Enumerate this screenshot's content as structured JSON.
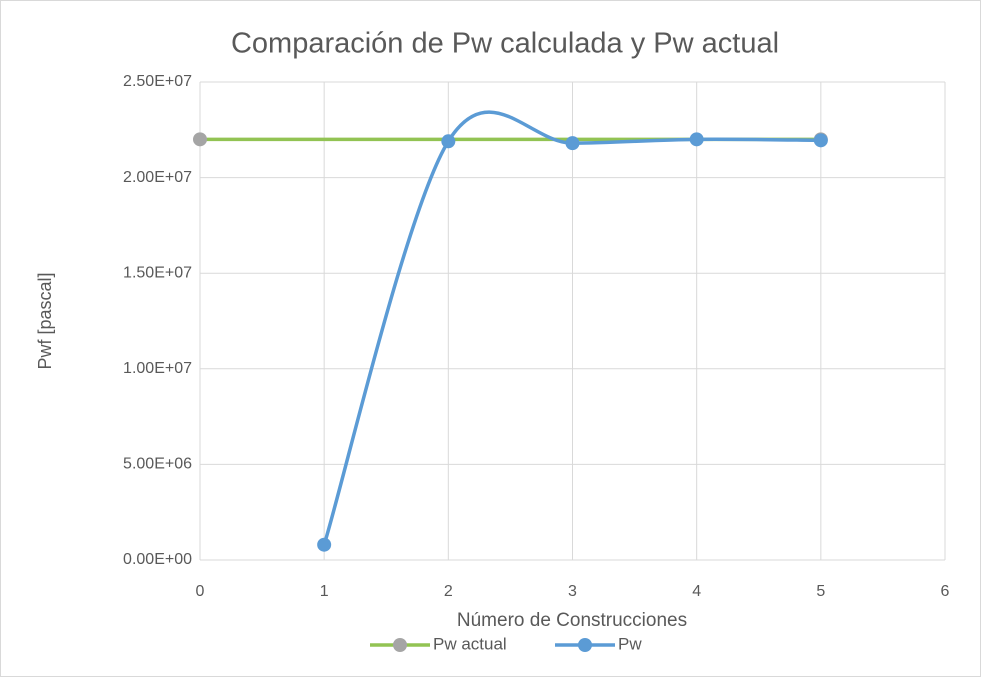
{
  "chart_data": {
    "type": "line",
    "title": "Comparación de Pw calculada y Pw actual",
    "x_label": "Número de Construcciones",
    "y_label": "Pwf [pascal]",
    "smooth": true,
    "grid": true,
    "legend": "bottom",
    "xlim": [
      0,
      6
    ],
    "xticks": [
      0,
      1,
      2,
      3,
      4,
      5,
      6
    ],
    "ylim": [
      0,
      25000000
    ],
    "yticks": [
      {
        "value": 0,
        "label": "0.00E+00"
      },
      {
        "value": 5000000,
        "label": "5.00E+06"
      },
      {
        "value": 10000000,
        "label": "1.00E+07"
      },
      {
        "value": 15000000,
        "label": "1.50E+07"
      },
      {
        "value": 20000000,
        "label": "2.00E+07"
      },
      {
        "value": 25000000,
        "label": "2.50E+07"
      }
    ],
    "series": [
      {
        "name": "Pw actual",
        "color": "#92c353",
        "marker_color": "#a5a5a5",
        "x": [
          0,
          5
        ],
        "values": [
          22000000,
          22000000
        ]
      },
      {
        "name": "Pw",
        "color": "#5b9bd5",
        "marker_color": "#5b9bd5",
        "x": [
          1,
          2,
          3,
          4,
          5
        ],
        "values": [
          800000,
          21900000,
          21800000,
          22000000,
          21950000
        ]
      }
    ]
  }
}
